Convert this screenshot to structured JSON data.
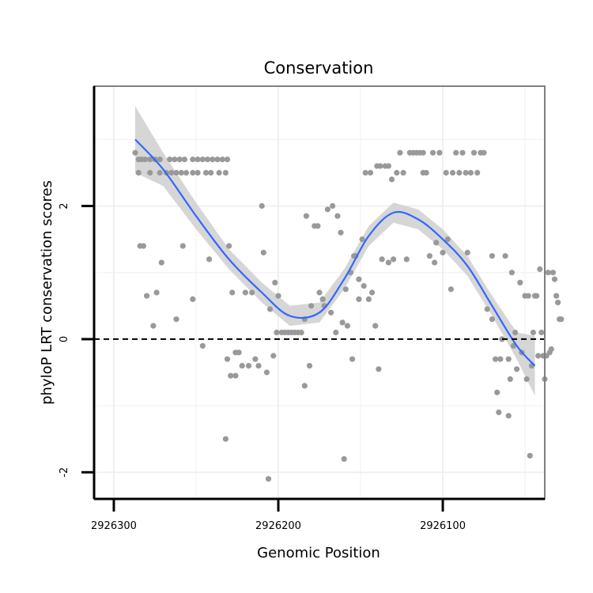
{
  "chart_data": {
    "type": "scatter",
    "title": "Conservation",
    "xlabel": "Genomic Position",
    "ylabel": "phyloP LRT conservation scores",
    "x_reversed": true,
    "xlim": [
      2926312,
      2926038
    ],
    "ylim": [
      -2.4,
      3.8
    ],
    "x_ticks": [
      2926300,
      2926200,
      2926100
    ],
    "x_tick_labels": [
      "2926300",
      "2926200",
      "2926100"
    ],
    "y_ticks": [
      -2,
      0,
      2
    ],
    "y_tick_labels": [
      "-2",
      "0",
      "2"
    ],
    "reference_line": {
      "y": 0,
      "style": "dashed"
    },
    "colors": {
      "points": "#999999",
      "smooth": "#3366FF",
      "band": "#cfcfcf",
      "panel_border": "#7f7f7f",
      "grid": "#f0f0f0"
    },
    "smooth": {
      "x": [
        2926287,
        2926270,
        2926250,
        2926230,
        2926210,
        2926193,
        2926175,
        2926160,
        2926145,
        2926130,
        2926115,
        2926100,
        2926085,
        2926070,
        2926055,
        2926044
      ],
      "y": [
        3.0,
        2.55,
        1.85,
        1.2,
        0.7,
        0.35,
        0.4,
        0.9,
        1.55,
        1.9,
        1.8,
        1.5,
        1.1,
        0.5,
        -0.1,
        -0.4
      ],
      "lower": [
        2.5,
        2.3,
        1.65,
        1.05,
        0.55,
        0.2,
        0.25,
        0.75,
        1.4,
        1.75,
        1.65,
        1.35,
        0.95,
        0.35,
        -0.3,
        -0.85
      ],
      "upper": [
        3.5,
        2.8,
        2.05,
        1.35,
        0.85,
        0.5,
        0.55,
        1.05,
        1.7,
        2.05,
        1.95,
        1.65,
        1.25,
        0.65,
        0.1,
        0.05
      ]
    },
    "points": [
      [
        2926287,
        2.8
      ],
      [
        2926285,
        2.7
      ],
      [
        2926283,
        2.7
      ],
      [
        2926281,
        2.7
      ],
      [
        2926278,
        2.7
      ],
      [
        2926275,
        2.7
      ],
      [
        2926272,
        2.7
      ],
      [
        2926266,
        2.7
      ],
      [
        2926263,
        2.7
      ],
      [
        2926260,
        2.7
      ],
      [
        2926257,
        2.7
      ],
      [
        2926252,
        2.7
      ],
      [
        2926249,
        2.7
      ],
      [
        2926246,
        2.7
      ],
      [
        2926243,
        2.7
      ],
      [
        2926240,
        2.7
      ],
      [
        2926237,
        2.7
      ],
      [
        2926234,
        2.7
      ],
      [
        2926231,
        2.7
      ],
      [
        2926285,
        2.5
      ],
      [
        2926278,
        2.5
      ],
      [
        2926272,
        2.5
      ],
      [
        2926268,
        2.5
      ],
      [
        2926265,
        2.5
      ],
      [
        2926262,
        2.5
      ],
      [
        2926259,
        2.5
      ],
      [
        2926256,
        2.5
      ],
      [
        2926252,
        2.5
      ],
      [
        2926249,
        2.5
      ],
      [
        2926244,
        2.5
      ],
      [
        2926241,
        2.5
      ],
      [
        2926236,
        2.5
      ],
      [
        2926232,
        2.5
      ],
      [
        2926284,
        1.4
      ],
      [
        2926282,
        1.4
      ],
      [
        2926280,
        0.65
      ],
      [
        2926276,
        0.2
      ],
      [
        2926274,
        0.7
      ],
      [
        2926271,
        1.15
      ],
      [
        2926262,
        0.3
      ],
      [
        2926258,
        1.4
      ],
      [
        2926252,
        0.6
      ],
      [
        2926246,
        -0.1
      ],
      [
        2926242,
        1.2
      ],
      [
        2926230,
        1.4
      ],
      [
        2926232,
        -1.5
      ],
      [
        2926228,
        0.7
      ],
      [
        2926231,
        -0.3
      ],
      [
        2926229,
        -0.55
      ],
      [
        2926226,
        -0.55
      ],
      [
        2926226,
        -0.2
      ],
      [
        2926224,
        -0.2
      ],
      [
        2926222,
        -0.4
      ],
      [
        2926220,
        0.7
      ],
      [
        2926218,
        -0.4
      ],
      [
        2926216,
        0.7
      ],
      [
        2926214,
        -0.3
      ],
      [
        2926212,
        -0.4
      ],
      [
        2926210,
        2.0
      ],
      [
        2926209,
        1.3
      ],
      [
        2926207,
        -0.5
      ],
      [
        2926205,
        0.45
      ],
      [
        2926203,
        -0.25
      ],
      [
        2926202,
        0.85
      ],
      [
        2926201,
        0.1
      ],
      [
        2926200,
        0.65
      ],
      [
        2926198,
        0.1
      ],
      [
        2926196,
        0.1
      ],
      [
        2926194,
        0.1
      ],
      [
        2926192,
        0.1
      ],
      [
        2926190,
        0.1
      ],
      [
        2926188,
        0.1
      ],
      [
        2926186,
        0.1
      ],
      [
        2926206,
        -2.1
      ],
      [
        2926184,
        0.3
      ],
      [
        2926184,
        -0.7
      ],
      [
        2926183,
        1.85
      ],
      [
        2926181,
        -0.4
      ],
      [
        2926180,
        0.5
      ],
      [
        2926178,
        1.7
      ],
      [
        2926176,
        1.7
      ],
      [
        2926175,
        0.7
      ],
      [
        2926173,
        0.6
      ],
      [
        2926172,
        0.5
      ],
      [
        2926170,
        1.95
      ],
      [
        2926168,
        0.4
      ],
      [
        2926167,
        2.0
      ],
      [
        2926165,
        0.1
      ],
      [
        2926164,
        1.85
      ],
      [
        2926162,
        1.6
      ],
      [
        2926161,
        0.25
      ],
      [
        2926159,
        0.75
      ],
      [
        2926158,
        0.2
      ],
      [
        2926160,
        -1.8
      ],
      [
        2926156,
        1.0
      ],
      [
        2926155,
        -0.3
      ],
      [
        2926154,
        1.25
      ],
      [
        2926153,
        1.25
      ],
      [
        2926151,
        0.9
      ],
      [
        2926151,
        0.6
      ],
      [
        2926149,
        1.5
      ],
      [
        2926148,
        0.8
      ],
      [
        2926147,
        2.5
      ],
      [
        2926145,
        0.6
      ],
      [
        2926144,
        2.5
      ],
      [
        2926143,
        0.7
      ],
      [
        2926141,
        0.2
      ],
      [
        2926140,
        2.6
      ],
      [
        2926139,
        -0.45
      ],
      [
        2926138,
        2.6
      ],
      [
        2926137,
        1.2
      ],
      [
        2926135,
        2.6
      ],
      [
        2926133,
        2.6
      ],
      [
        2926133,
        1.15
      ],
      [
        2926131,
        2.4
      ],
      [
        2926130,
        1.2
      ],
      [
        2926128,
        2.5
      ],
      [
        2926126,
        2.8
      ],
      [
        2926124,
        2.5
      ],
      [
        2926122,
        1.2
      ],
      [
        2926120,
        2.8
      ],
      [
        2926118,
        2.8
      ],
      [
        2926116,
        2.8
      ],
      [
        2926114,
        2.8
      ],
      [
        2926112,
        2.8
      ],
      [
        2926112,
        2.5
      ],
      [
        2926110,
        2.5
      ],
      [
        2926108,
        1.25
      ],
      [
        2926106,
        2.8
      ],
      [
        2926105,
        1.15
      ],
      [
        2926104,
        1.45
      ],
      [
        2926102,
        2.8
      ],
      [
        2926100,
        1.3
      ],
      [
        2926098,
        2.5
      ],
      [
        2926097,
        1.5
      ],
      [
        2926095,
        0.75
      ],
      [
        2926094,
        2.5
      ],
      [
        2926092,
        2.8
      ],
      [
        2926090,
        2.5
      ],
      [
        2926088,
        2.8
      ],
      [
        2926086,
        2.5
      ],
      [
        2926085,
        1.3
      ],
      [
        2926083,
        2.5
      ],
      [
        2926081,
        2.8
      ],
      [
        2926079,
        2.5
      ],
      [
        2926077,
        2.8
      ],
      [
        2926075,
        2.8
      ],
      [
        2926073,
        0.45
      ],
      [
        2926070,
        0.3
      ],
      [
        2926070,
        1.25
      ],
      [
        2926068,
        -0.3
      ],
      [
        2926067,
        -0.8
      ],
      [
        2926066,
        -1.1
      ],
      [
        2926065,
        -0.3
      ],
      [
        2926064,
        0.0
      ],
      [
        2926062,
        1.25
      ],
      [
        2926060,
        -0.3
      ],
      [
        2926060,
        -1.15
      ],
      [
        2926059,
        -0.6
      ],
      [
        2926058,
        1.0
      ],
      [
        2926057,
        -0.1
      ],
      [
        2926056,
        0.1
      ],
      [
        2926055,
        -0.45
      ],
      [
        2926053,
        0.85
      ],
      [
        2926052,
        -0.2
      ],
      [
        2926050,
        0.65
      ],
      [
        2926049,
        -0.6
      ],
      [
        2926048,
        0.65
      ],
      [
        2926047,
        -1.75
      ],
      [
        2926046,
        -0.4
      ],
      [
        2926045,
        0.1
      ],
      [
        2926044,
        0.65
      ],
      [
        2926043,
        0.65
      ],
      [
        2926042,
        -0.25
      ],
      [
        2926041,
        1.05
      ],
      [
        2926040,
        0.1
      ],
      [
        2926039,
        -0.25
      ],
      [
        2926038,
        -0.6
      ],
      [
        2926037,
        -0.25
      ],
      [
        2926036,
        1.0
      ],
      [
        2926035,
        -0.2
      ],
      [
        2926034,
        -0.15
      ],
      [
        2926033,
        1.0
      ],
      [
        2926032,
        0.9
      ],
      [
        2926031,
        0.65
      ],
      [
        2926030,
        0.55
      ],
      [
        2926029,
        0.3
      ],
      [
        2926028,
        0.3
      ]
    ]
  }
}
